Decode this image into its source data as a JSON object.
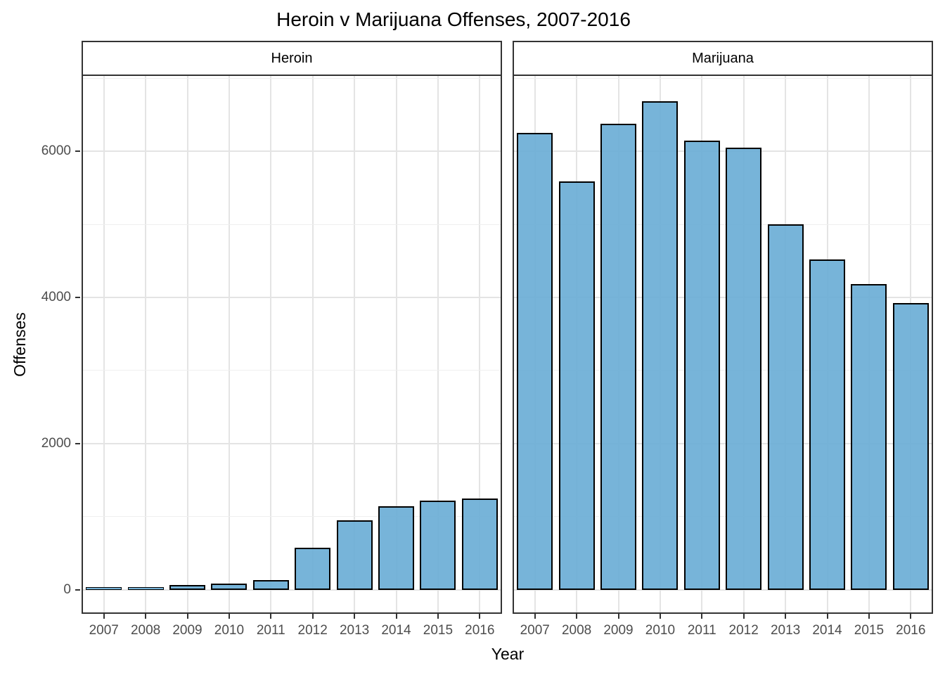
{
  "title": "Heroin v Marijuana Offenses, 2007-2016",
  "chart_data": {
    "type": "bar",
    "title": "Heroin v Marijuana Offenses, 2007-2016",
    "xlabel": "Year",
    "ylabel": "Offenses",
    "categories": [
      "2007",
      "2008",
      "2009",
      "2010",
      "2011",
      "2012",
      "2013",
      "2014",
      "2015",
      "2016"
    ],
    "facets": [
      {
        "label": "Heroin",
        "values": [
          40,
          20,
          70,
          80,
          135,
          580,
          950,
          1140,
          1215,
          1245
        ]
      },
      {
        "label": "Marijuana",
        "values": [
          6250,
          5590,
          6375,
          6680,
          6145,
          6045,
          5000,
          4520,
          4185,
          3920
        ]
      }
    ],
    "y_axis": {
      "ticks": [
        0,
        2000,
        4000,
        6000
      ],
      "tick_labels": [
        "0",
        "2000",
        "4000",
        "6000"
      ],
      "minor_ticks": [
        1000,
        3000,
        5000,
        7000
      ],
      "range": [
        -310,
        7030
      ]
    },
    "legend": "none",
    "grid": "on",
    "style": {
      "bar_fill": "#6baed6",
      "bar_fill_alpha": 0.92,
      "bar_stroke": "#000000",
      "panel_border": "#333333",
      "grid_major": "#e4e4e4",
      "grid_minor": "#efefef",
      "tick_label_color": "#4d4d4d",
      "text_color": "#000000",
      "background": "#ffffff"
    }
  }
}
